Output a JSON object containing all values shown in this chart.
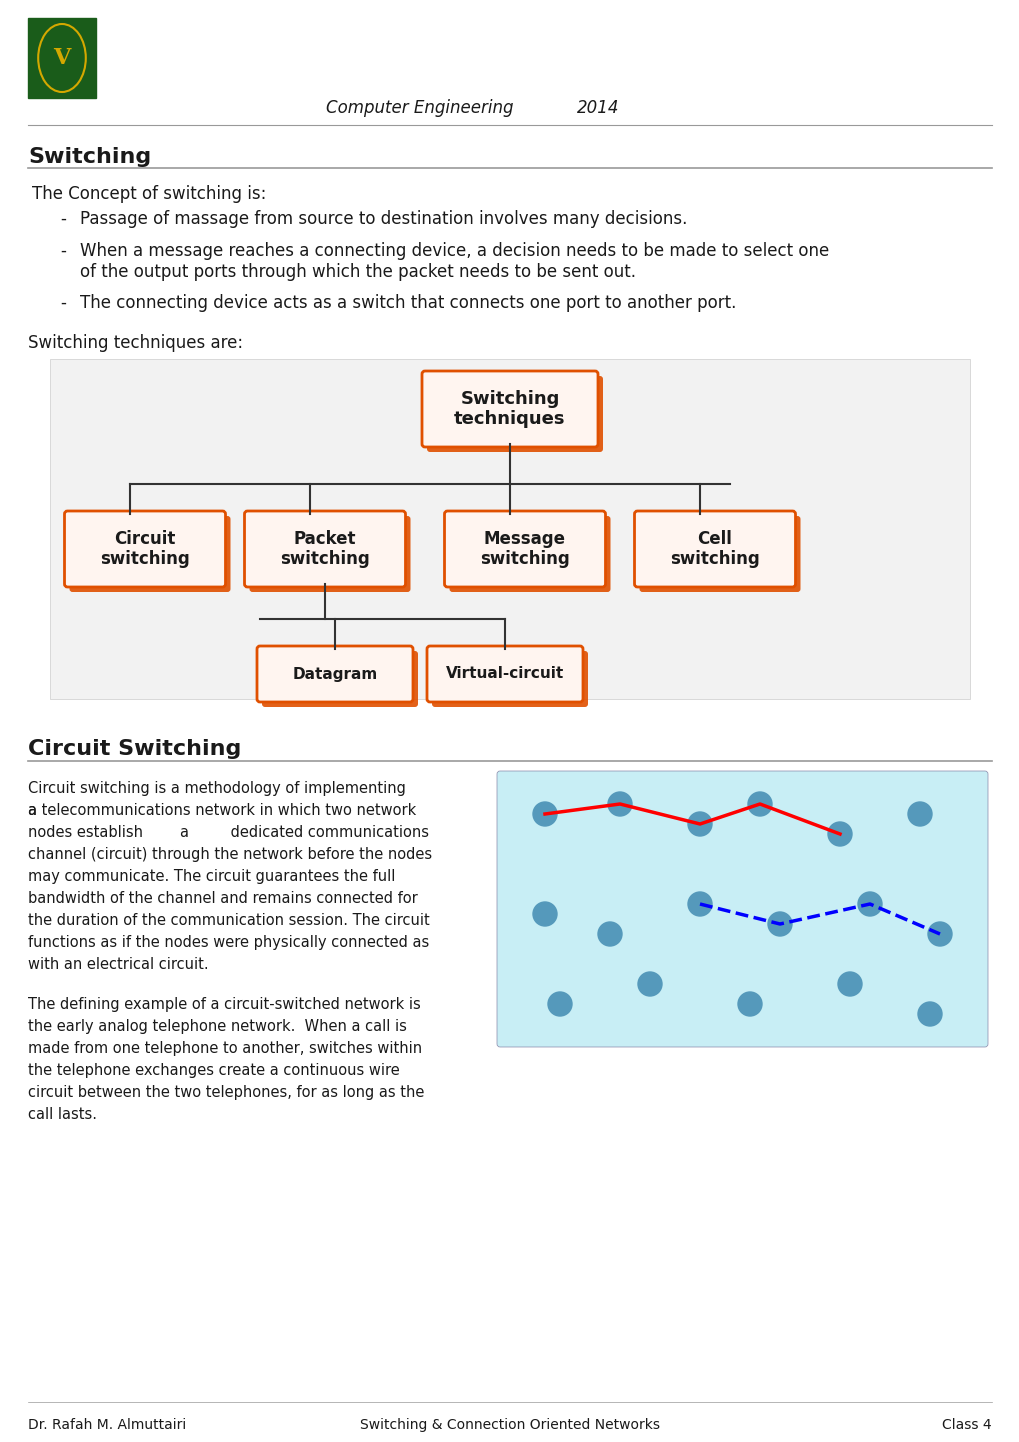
{
  "bg_color": "#ffffff",
  "header_italic_text": "Computer Engineering",
  "header_year": "2014",
  "logo_color": "#1a5c1a",
  "section1_title": "Switching",
  "section1_intro": "The Concept of switching is:",
  "section1_bullets": [
    "Passage of massage from source to destination involves many decisions.",
    "When a message reaches a connecting device, a decision needs to be made to select one\nof the output ports through which the packet needs to be sent out.",
    "The connecting device acts as a switch that connects one port to another port."
  ],
  "section1_closing": "Switching techniques are:",
  "diagram_bg": "#f0f0f0",
  "box_fill": "#fff5f0",
  "box_border": "#e05000",
  "shadow_color": "#e05000",
  "box_texts": {
    "root": "Switching\ntechniques",
    "children": [
      "Circuit\nswitching",
      "Packet\nswitching",
      "Message\nswitching",
      "Cell\nswitching"
    ],
    "grandchildren": [
      "Datagram",
      "Virtual-circuit"
    ]
  },
  "section2_title": "Circuit Switching",
  "section2_para1": "Circuit switching is a methodology of implementing\na telecommunications network in which two network\nnodes establish a dedicated communications\nchannel (circuit) through the network before the nodes\nmay communicate. The circuit guarantees the full\nbandwidth of the channel and remains connected for\nthe duration of the communication session. The circuit\nfunctions as if the nodes were physically connected as\nwith an electrical circuit.",
  "section2_para1_links": [
    "telecommunications network",
    "network\nnodes",
    "communications\nchannel",
    "circuit",
    "call",
    "telephone network",
    "telephone exchanges"
  ],
  "section2_para2": "The defining example of a circuit-switched network is\nthe early analog telephone network. When a call is\nmade from one telephone to another, switches within\nthe telephone exchanges create a continuous wire\ncircuit between the two telephones, for as long as the\ncall lasts.",
  "footer_left": "Dr. Rafah M. Almuttairi",
  "footer_center": "Switching & Connection Oriented Networks",
  "footer_right": "Class 4",
  "text_color": "#1a1a1a",
  "link_color": "#0000cc",
  "line_color": "#999999"
}
